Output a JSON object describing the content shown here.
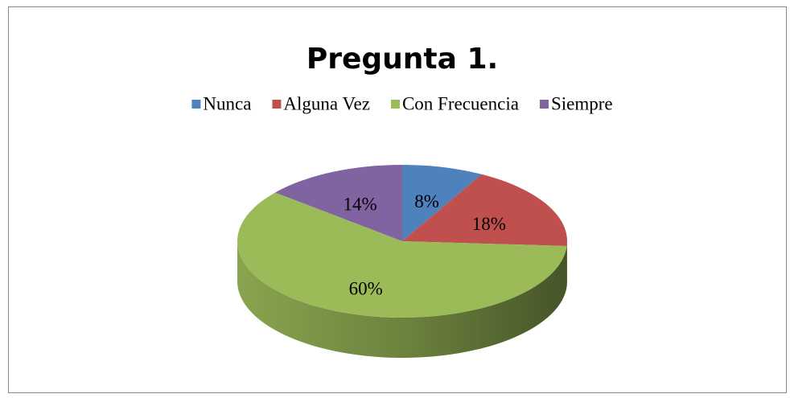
{
  "chart_data": {
    "type": "pie3d",
    "title": "Pregunta 1.",
    "categories": [
      "Nunca",
      "Alguna Vez",
      "Con Frecuencia",
      "Siempre"
    ],
    "values": [
      8,
      18,
      60,
      14
    ],
    "value_labels": [
      "8%",
      "18%",
      "60%",
      "14%"
    ],
    "colors": [
      "#4f81bd",
      "#c0504d",
      "#9bbb59",
      "#8064a2"
    ],
    "legend": "top"
  }
}
